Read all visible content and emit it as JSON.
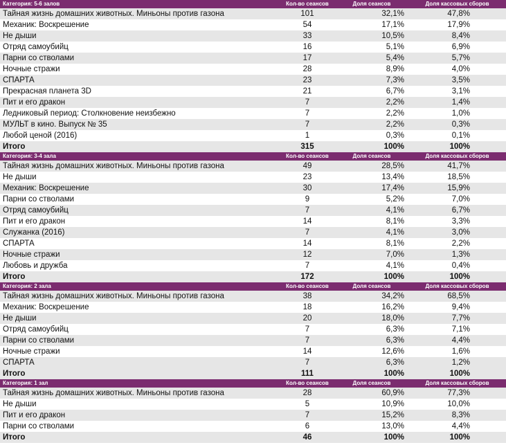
{
  "sections": [
    {
      "category": "Категория: 5-6 залов",
      "columns": [
        "Кол-во сеансов",
        "Доля сеансов",
        "Доля кассовых сборов"
      ],
      "rows": [
        [
          "Тайная жизнь домашних животных. Миньоны против газона",
          101,
          "32,1%",
          "47,8%"
        ],
        [
          "Механик: Воскрешение",
          54,
          "17,1%",
          "17,9%"
        ],
        [
          "Не дыши",
          33,
          "10,5%",
          "8,4%"
        ],
        [
          "Отряд самоубийц",
          16,
          "5,1%",
          "6,9%"
        ],
        [
          "Парни со стволами",
          17,
          "5,4%",
          "5,7%"
        ],
        [
          "Ночные стражи",
          28,
          "8,9%",
          "4,0%"
        ],
        [
          "СПАРТА",
          23,
          "7,3%",
          "3,5%"
        ],
        [
          "Прекрасная планета 3D",
          21,
          "6,7%",
          "3,1%"
        ],
        [
          "Пит и его дракон",
          7,
          "2,2%",
          "1,4%"
        ],
        [
          "Ледниковый период: Столкновение неизбежно",
          7,
          "2,2%",
          "1,0%"
        ],
        [
          "МУЛЬТ в кино. Выпуск № 35",
          7,
          "2,2%",
          "0,3%"
        ],
        [
          "Любой ценой (2016)",
          1,
          "0,3%",
          "0,1%"
        ]
      ],
      "total": [
        "Итого",
        315,
        "100%",
        "100%"
      ]
    },
    {
      "category": "Категория: 3-4 зала",
      "columns": [
        "Кол-во сеансов",
        "Доля сеансов",
        "Доля кассовых сборов"
      ],
      "rows": [
        [
          "Тайная жизнь домашних животных. Миньоны против газона",
          49,
          "28,5%",
          "41,7%"
        ],
        [
          "Не дыши",
          23,
          "13,4%",
          "18,5%"
        ],
        [
          "Механик: Воскрешение",
          30,
          "17,4%",
          "15,9%"
        ],
        [
          "Парни со стволами",
          9,
          "5,2%",
          "7,0%"
        ],
        [
          "Отряд самоубийц",
          7,
          "4,1%",
          "6,7%"
        ],
        [
          "Пит и его дракон",
          14,
          "8,1%",
          "3,3%"
        ],
        [
          "Служанка (2016)",
          7,
          "4,1%",
          "3,0%"
        ],
        [
          "СПАРТА",
          14,
          "8,1%",
          "2,2%"
        ],
        [
          "Ночные стражи",
          12,
          "7,0%",
          "1,3%"
        ],
        [
          "Любовь и дружба",
          7,
          "4,1%",
          "0,4%"
        ]
      ],
      "total": [
        "Итого",
        172,
        "100%",
        "100%"
      ]
    },
    {
      "category": "Категория: 2 зала",
      "columns": [
        "Кол-во сеансов",
        "Доля сеансов",
        "Доля кассовых сборов"
      ],
      "rows": [
        [
          "Тайная жизнь домашних животных. Миньоны против газона",
          38,
          "34,2%",
          "68,5%"
        ],
        [
          "Механик: Воскрешение",
          18,
          "16,2%",
          "9,4%"
        ],
        [
          "Не дыши",
          20,
          "18,0%",
          "7,7%"
        ],
        [
          "Отряд самоубийц",
          7,
          "6,3%",
          "7,1%"
        ],
        [
          "Парни со стволами",
          7,
          "6,3%",
          "4,4%"
        ],
        [
          "Ночные стражи",
          14,
          "12,6%",
          "1,6%"
        ],
        [
          "СПАРТА",
          7,
          "6,3%",
          "1,2%"
        ]
      ],
      "total": [
        "Итого",
        111,
        "100%",
        "100%"
      ]
    },
    {
      "category": "Категория: 1 зал",
      "columns": [
        "Кол-во сеансов",
        "Доля сеансов",
        "Доля кассовых сборов"
      ],
      "rows": [
        [
          "Тайная жизнь домашних животных. Миньоны против газона",
          28,
          "60,9%",
          "77,3%"
        ],
        [
          "Не дыши",
          5,
          "10,9%",
          "10,0%"
        ],
        [
          "Пит и его дракон",
          7,
          "15,2%",
          "8,3%"
        ],
        [
          "Парни со стволами",
          6,
          "13,0%",
          "4,4%"
        ]
      ],
      "total": [
        "Итого",
        46,
        "100%",
        "100%"
      ]
    }
  ]
}
